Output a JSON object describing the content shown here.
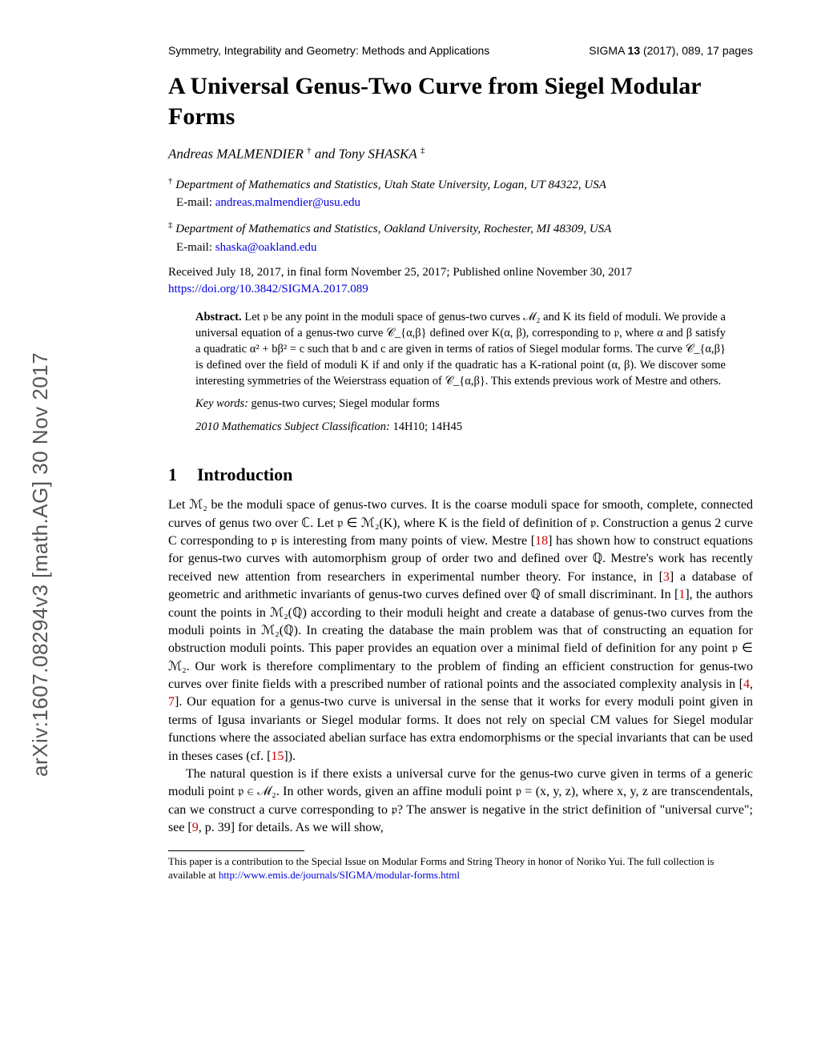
{
  "arxiv_id": "arXiv:1607.08294v3  [math.AG]  30 Nov 2017",
  "journal_header_left": "Symmetry, Integrability and Geometry: Methods and Applications",
  "journal_header_right_prefix": "SIGMA ",
  "journal_header_right_vol": "13",
  "journal_header_right_rest": " (2017), 089, 17 pages",
  "title": "A Universal Genus-Two Curve from Siegel Modular Forms",
  "author1": "Andreas MALMENDIER",
  "author_and": " and ",
  "author2": "Tony SHASKA",
  "dagger": "†",
  "ddagger": "‡",
  "affil1_text": "Department of Mathematics and Statistics, Utah State University, Logan, UT 84322, USA",
  "email1_label": "E-mail: ",
  "email1": "andreas.malmendier@usu.edu",
  "affil2_text": "Department of Mathematics and Statistics, Oakland University, Rochester, MI 48309, USA",
  "email2_label": "E-mail: ",
  "email2": "shaska@oakland.edu",
  "received": "Received July 18, 2017, in final form November 25, 2017; Published online November 30, 2017",
  "doi": "https://doi.org/10.3842/SIGMA.2017.089",
  "abstract_label": "Abstract.",
  "abstract_body": " Let 𝔭 be any point in the moduli space of genus-two curves ℳ₂ and K its field of moduli. We provide a universal equation of a genus-two curve 𝒞_{α,β} defined over K(α, β), corresponding to 𝔭, where α and β satisfy a quadratic α² + bβ² = c such that b and c are given in terms of ratios of Siegel modular forms. The curve 𝒞_{α,β} is defined over the field of moduli K if and only if the quadratic has a K-rational point (α, β). We discover some interesting symmetries of the Weierstrass equation of 𝒞_{α,β}. This extends previous work of Mestre and others.",
  "keywords_label": "Key words:",
  "keywords_body": " genus-two curves; Siegel modular forms",
  "msc_label": "2010 Mathematics Subject Classification:",
  "msc_body": " 14H10; 14H45",
  "section1_num": "1",
  "section1_title": "Introduction",
  "para1_a": "Let ℳ₂ be the moduli space of genus-two curves. It is the coarse moduli space for smooth, complete, connected curves of genus two over ℂ. Let 𝔭 ∈ ℳ₂(K), where K is the field of definition of 𝔭. Construction a genus 2 curve C corresponding to 𝔭 is interesting from many points of view. Mestre [",
  "ref18": "18",
  "para1_b": "] has shown how to construct equations for genus-two curves with automorphism group of order two and defined over ℚ. Mestre's work has recently received new attention from researchers in experimental number theory. For instance, in [",
  "ref3": "3",
  "para1_c": "] a database of geometric and arithmetic invariants of genus-two curves defined over ℚ of small discriminant. In [",
  "ref1": "1",
  "para1_d": "], the authors count the points in ℳ₂(ℚ) according to their moduli height and create a database of genus-two curves from the moduli points in ℳ₂(ℚ). In creating the database the main problem was that of constructing an equation for obstruction moduli points. This paper provides an equation over a minimal field of definition for any point 𝔭 ∈ ℳ₂. Our work is therefore complimentary to the problem of finding an efficient construction for genus-two curves over finite fields with a prescribed number of rational points and the associated complexity analysis in [",
  "ref4": "4",
  "para1_e": ", ",
  "ref7": "7",
  "para1_f": "]. Our equation for a genus-two curve is universal in the sense that it works for every moduli point given in terms of Igusa invariants or Siegel modular forms. It does not rely on special CM values for Siegel modular functions where the associated abelian surface has extra endomorphisms or the special invariants that can be used in theses cases (cf. [",
  "ref15": "15",
  "para1_g": "]).",
  "para2_a": "The natural question is if there exists a universal curve for the genus-two curve given in terms of a generic moduli point 𝔭 ∈ ℳ₂. In other words, given an affine moduli point 𝔭 = (x, y, z), where x, y, z are transcendentals, can we construct a curve corresponding to 𝔭? The answer is negative in the strict definition of \"universal curve\"; see [",
  "ref9": "9",
  "para2_b": ", p. 39] for details. As we will show,",
  "footnote_a": "This paper is a contribution to the Special Issue on Modular Forms and String Theory in honor of Noriko Yui. The full collection is available at ",
  "footnote_url": "http://www.emis.de/journals/SIGMA/modular-forms.html"
}
